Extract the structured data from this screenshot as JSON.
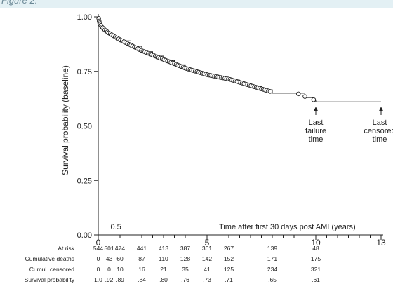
{
  "header": {
    "title": "Figure 2."
  },
  "chart_data": {
    "type": "line",
    "xlabel": "Time after first 30 days post AMI (years)",
    "ylabel": "Survival probability (baseline)",
    "xlim": [
      0,
      13
    ],
    "ylim": [
      0,
      1
    ],
    "x_ticks": [
      {
        "value": 0,
        "label": "0"
      },
      {
        "value": 5,
        "label": "5"
      },
      {
        "value": 10,
        "label": "10"
      },
      {
        "value": 13,
        "label": "13"
      }
    ],
    "x_minor_ticks": [
      0.5,
      1,
      1.5,
      2,
      2.5,
      3,
      3.5,
      4,
      4.5,
      5.5,
      6,
      6.5,
      7,
      7.5,
      8,
      8.5,
      9,
      9.5,
      10.5,
      11,
      11.5,
      12,
      12.5
    ],
    "y_ticks": [
      {
        "value": 0,
        "label": "0.00"
      },
      {
        "value": 0.25,
        "label": "0.25"
      },
      {
        "value": 0.5,
        "label": "0.50"
      },
      {
        "value": 0.75,
        "label": "0.75"
      },
      {
        "value": 1,
        "label": "1.00"
      }
    ],
    "inplot_labels": [
      {
        "text": "0.5",
        "x": 0.5
      }
    ],
    "grid": false,
    "series": [
      {
        "step": true,
        "x": [
          0,
          0.05,
          0.15,
          0.3,
          0.5,
          0.75,
          1.0,
          1.5,
          2.0,
          2.5,
          3.0,
          3.5,
          4.0,
          4.5,
          5.0,
          5.5,
          6.0,
          6.5,
          7.0,
          7.5,
          8.0,
          9.0,
          9.5,
          9.9,
          10.0,
          13.0
        ],
        "y": [
          1.0,
          0.97,
          0.95,
          0.935,
          0.92,
          0.905,
          0.89,
          0.865,
          0.84,
          0.82,
          0.8,
          0.78,
          0.76,
          0.745,
          0.73,
          0.72,
          0.71,
          0.695,
          0.68,
          0.665,
          0.65,
          0.65,
          0.63,
          0.615,
          0.61,
          0.61
        ]
      }
    ],
    "censor_marks": [
      0.02,
      0.04,
      0.06,
      0.09,
      0.12,
      0.16,
      0.2,
      0.25,
      0.3,
      0.36,
      0.42,
      0.48,
      0.55,
      0.62,
      0.7,
      0.78,
      0.86,
      0.94,
      1.02,
      1.1,
      1.18,
      1.26,
      1.34,
      1.42,
      1.5,
      1.58,
      1.66,
      1.74,
      1.82,
      1.9,
      1.98,
      2.06,
      2.14,
      2.22,
      2.3,
      2.38,
      2.46,
      2.54,
      2.62,
      2.7,
      2.78,
      2.86,
      2.94,
      3.02,
      3.1,
      3.18,
      3.26,
      3.34,
      3.42,
      3.5,
      3.58,
      3.66,
      3.74,
      3.82,
      3.9,
      3.98,
      4.06,
      4.14,
      4.22,
      4.3,
      4.38,
      4.46,
      4.54,
      4.62,
      4.7,
      4.78,
      4.86,
      4.94,
      5.02,
      5.1,
      5.18,
      5.26,
      5.34,
      5.42,
      5.5,
      5.58,
      5.66,
      5.74,
      5.82,
      5.9,
      5.98,
      6.06,
      6.14,
      6.22,
      6.3,
      6.38,
      6.46,
      6.54,
      6.62,
      6.7,
      6.78,
      6.86,
      6.94,
      7.02,
      7.1,
      7.18,
      7.26,
      7.34,
      7.42,
      7.5,
      7.58,
      7.66,
      7.74,
      7.82,
      7.9,
      9.2,
      9.5,
      9.9
    ],
    "annotations": [
      {
        "lines": [
          "Last",
          "failure",
          "time"
        ],
        "x": 10
      },
      {
        "lines": [
          "Last",
          "censored",
          "time"
        ],
        "x": 13
      }
    ],
    "risk_table": {
      "x": [
        0,
        0.5,
        1,
        1.5,
        2,
        2.5,
        3,
        3.5,
        4,
        4.5,
        5,
        5.5,
        6,
        6.5,
        7,
        8,
        10
      ],
      "rows": [
        {
          "label": "At risk",
          "cells": [
            {
              "x": 0,
              "v": "544"
            },
            {
              "x": 0.5,
              "v": "501"
            },
            {
              "x": 1,
              "v": "474"
            },
            {
              "x": 2,
              "v": "441"
            },
            {
              "x": 3,
              "v": "413"
            },
            {
              "x": 4,
              "v": "387"
            },
            {
              "x": 5,
              "v": "361"
            },
            {
              "x": 6,
              "v": "267"
            },
            {
              "x": 8,
              "v": "139"
            },
            {
              "x": 10,
              "v": "48"
            }
          ]
        },
        {
          "label": "Cumulative deaths",
          "cells": [
            {
              "x": 0,
              "v": "0"
            },
            {
              "x": 0.5,
              "v": "43"
            },
            {
              "x": 1,
              "v": "60"
            },
            {
              "x": 2,
              "v": "87"
            },
            {
              "x": 3,
              "v": "110"
            },
            {
              "x": 4,
              "v": "128"
            },
            {
              "x": 5,
              "v": "142"
            },
            {
              "x": 6,
              "v": "152"
            },
            {
              "x": 8,
              "v": "171"
            },
            {
              "x": 10,
              "v": "175"
            }
          ]
        },
        {
          "label": "Cumul. censored",
          "cells": [
            {
              "x": 0,
              "v": "0"
            },
            {
              "x": 0.5,
              "v": "0"
            },
            {
              "x": 1,
              "v": "10"
            },
            {
              "x": 2,
              "v": "16"
            },
            {
              "x": 3,
              "v": "21"
            },
            {
              "x": 4,
              "v": "35"
            },
            {
              "x": 5,
              "v": "41"
            },
            {
              "x": 6,
              "v": "125"
            },
            {
              "x": 8,
              "v": "234"
            },
            {
              "x": 10,
              "v": "321"
            }
          ]
        },
        {
          "label": "Survival probability",
          "cells": [
            {
              "x": 0,
              "v": "1.0"
            },
            {
              "x": 0.5,
              "v": ".92"
            },
            {
              "x": 1,
              "v": ".89"
            },
            {
              "x": 2,
              "v": ".84"
            },
            {
              "x": 3,
              "v": ".80"
            },
            {
              "x": 4,
              "v": ".76"
            },
            {
              "x": 5,
              "v": ".73"
            },
            {
              "x": 6,
              "v": ".71"
            },
            {
              "x": 8,
              "v": ".65"
            },
            {
              "x": 10,
              "v": ".61"
            }
          ]
        }
      ]
    }
  }
}
